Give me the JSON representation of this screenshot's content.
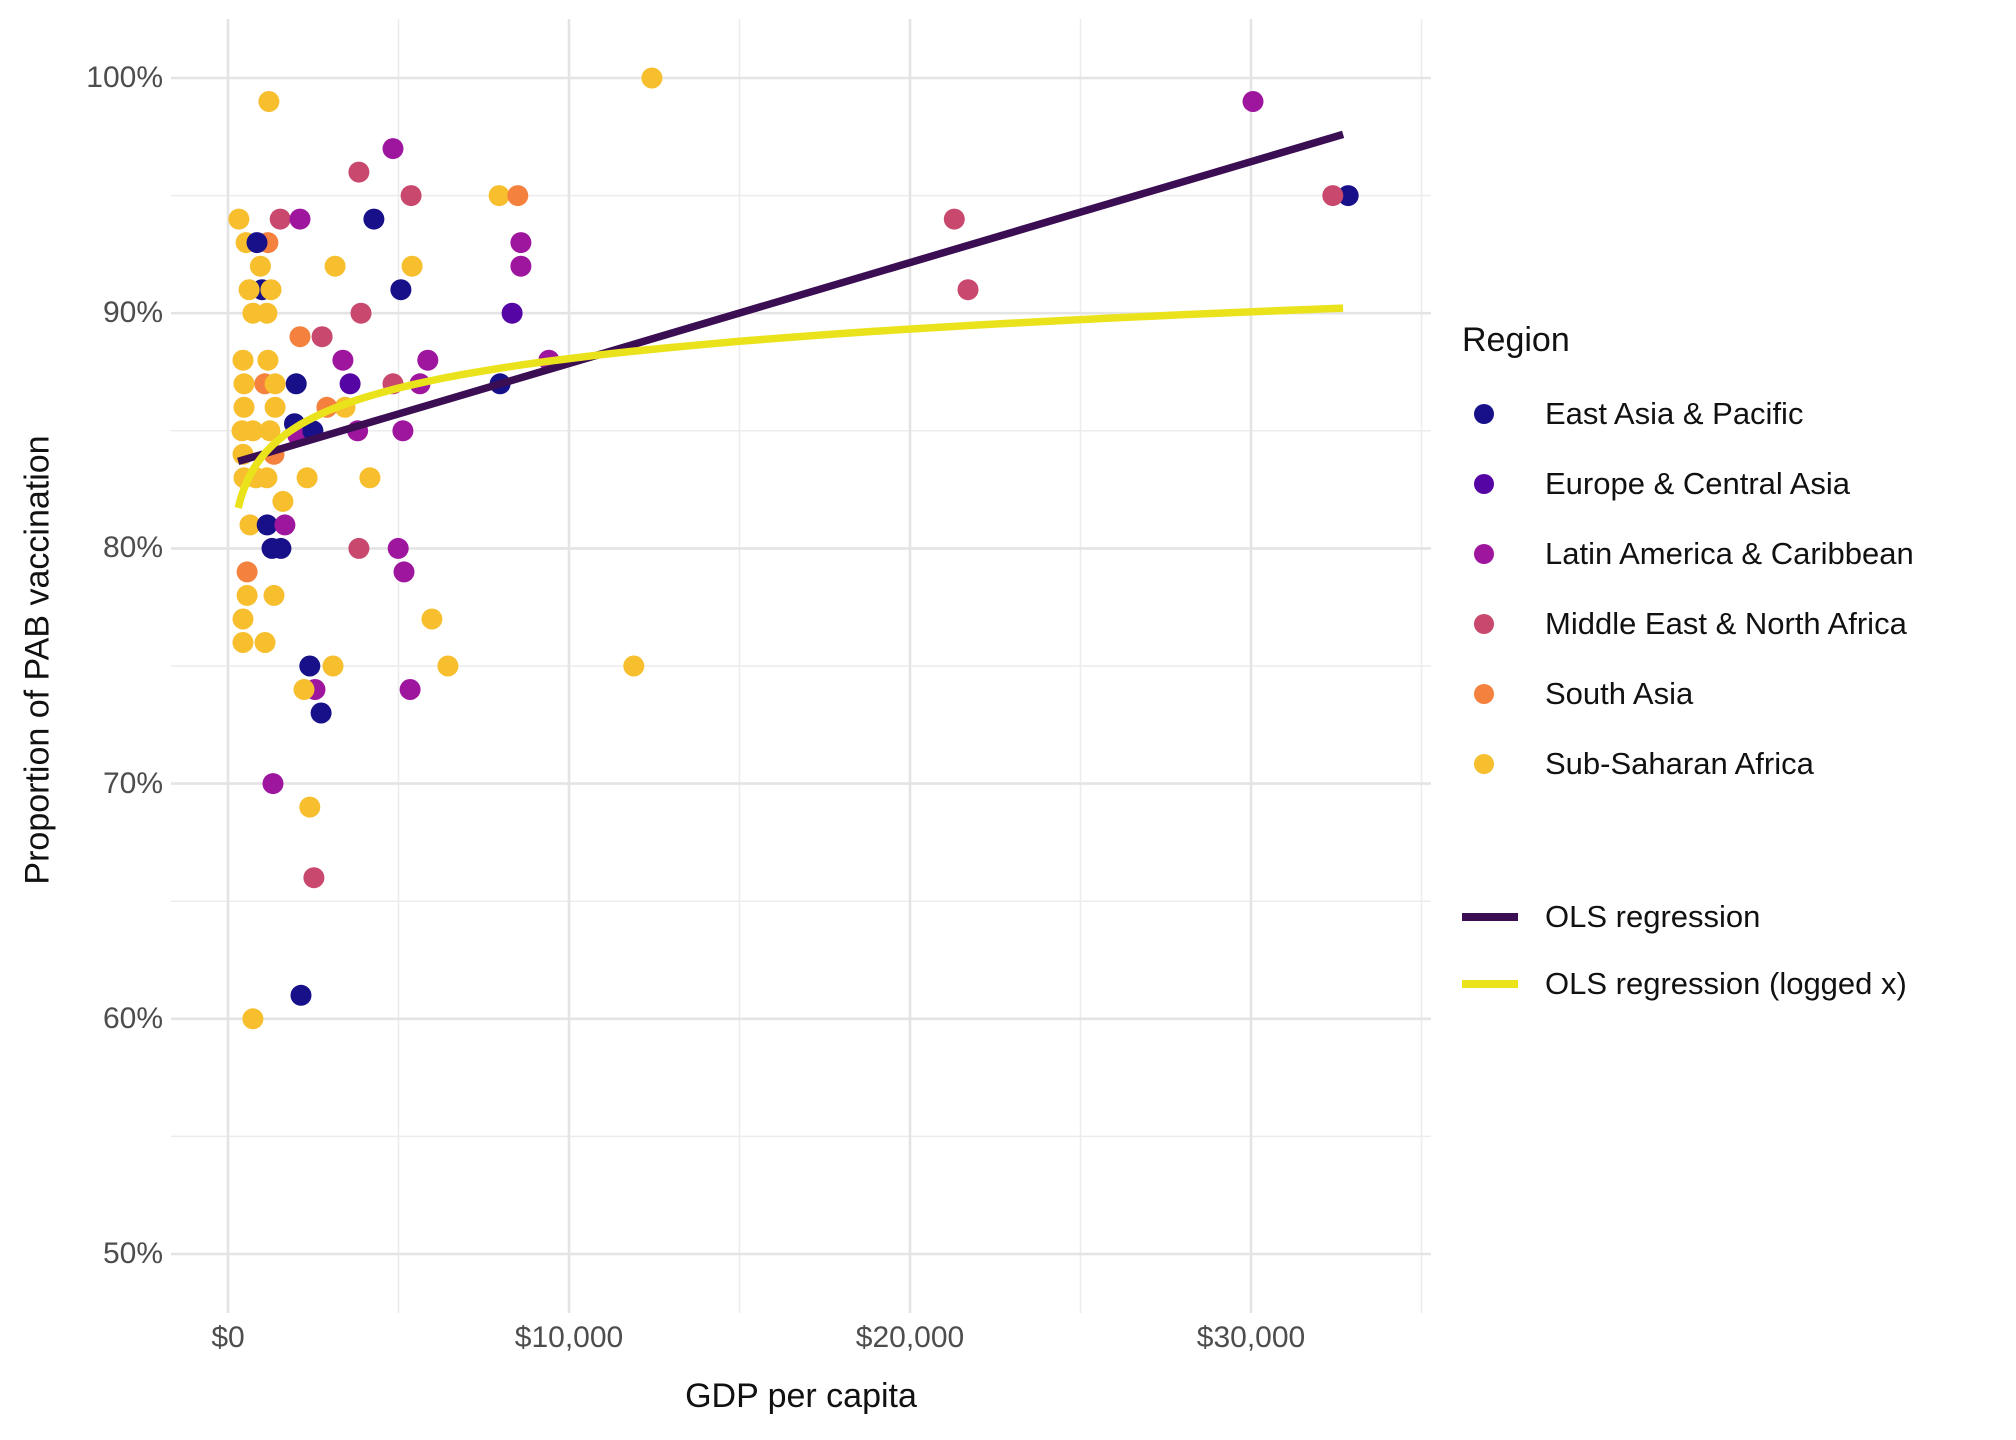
{
  "colors": {
    "eap": "#181089",
    "eca": "#5405A3",
    "lac": "#9E169E",
    "mena": "#C8486E",
    "sa": "#F5813E",
    "ssa": "#F7BE2D",
    "ols": "#3B0E53",
    "ols_logged": "#EAE31C",
    "grid_major": "#E4E4E4",
    "grid_minor": "#ECECEC",
    "tick_text": "#4D4D4D",
    "title_text": "#111111"
  },
  "axes": {
    "x": {
      "title": "GDP per capita",
      "ticks": [
        {
          "value": 0,
          "label": "$0"
        },
        {
          "value": 10000,
          "label": "$10,000"
        },
        {
          "value": 20000,
          "label": "$20,000"
        },
        {
          "value": 30000,
          "label": "$30,000"
        }
      ],
      "minor_ticks": [
        5000,
        15000,
        25000,
        35000
      ]
    },
    "y": {
      "title": "Proportion of PAB vaccination",
      "ticks": [
        {
          "value": 100,
          "label": "100%"
        },
        {
          "value": 90,
          "label": "90%"
        },
        {
          "value": 80,
          "label": "80%"
        },
        {
          "value": 70,
          "label": "70%"
        },
        {
          "value": 60,
          "label": "60%"
        },
        {
          "value": 50,
          "label": "50%"
        }
      ],
      "minor_ticks": [
        95,
        85,
        75,
        65,
        55
      ]
    }
  },
  "legend": {
    "title": "Region",
    "regions": [
      {
        "label": "East Asia & Pacific",
        "color_key": "eap"
      },
      {
        "label": "Europe & Central Asia",
        "color_key": "eca"
      },
      {
        "label": "Latin America & Caribbean",
        "color_key": "lac"
      },
      {
        "label": "Middle East & North Africa",
        "color_key": "mena"
      },
      {
        "label": "South Asia",
        "color_key": "sa"
      },
      {
        "label": "Sub-Saharan Africa",
        "color_key": "ssa"
      }
    ],
    "lines": [
      {
        "label": "OLS regression",
        "color_key": "ols"
      },
      {
        "label": "OLS regression (logged x)",
        "color_key": "ols_logged"
      }
    ]
  },
  "chart_data": {
    "type": "scatter",
    "title": "",
    "xlabel": "GDP per capita",
    "ylabel": "Proportion of PAB vaccination",
    "xlim": [
      -1700,
      35300
    ],
    "ylim": [
      47.5,
      102.5
    ],
    "grid": "on",
    "legend_position": "right",
    "point_unit": "[gdp_per_capita_usd, pab_vaccination_pct, region_key]",
    "points": [
      [
        530,
        93,
        "ssa"
      ],
      [
        1170,
        93,
        "sa"
      ],
      [
        850,
        93,
        "eap"
      ],
      [
        1000,
        91,
        "eap"
      ],
      [
        620,
        91,
        "ssa"
      ],
      [
        1260,
        91,
        "ssa"
      ],
      [
        1080,
        87,
        "sa"
      ],
      [
        470,
        87,
        "ssa"
      ],
      [
        1380,
        87,
        "ssa"
      ],
      [
        2000,
        87,
        "eap"
      ],
      [
        3580,
        87,
        "eca"
      ],
      [
        4840,
        87,
        "mena"
      ],
      [
        5630,
        87,
        "lac"
      ],
      [
        7980,
        87,
        "eap"
      ],
      [
        3430,
        86,
        "ssa"
      ],
      [
        2900,
        86,
        "sa"
      ],
      [
        470,
        86,
        "ssa"
      ],
      [
        1380,
        86,
        "ssa"
      ],
      [
        410,
        85,
        "ssa"
      ],
      [
        730,
        85,
        "ssa"
      ],
      [
        1230,
        85,
        "ssa"
      ],
      [
        1950,
        85.3,
        "eap"
      ],
      [
        2050,
        84.8,
        "lac"
      ],
      [
        2490,
        85,
        "eap"
      ],
      [
        3800,
        85,
        "lac"
      ],
      [
        5130,
        85,
        "lac"
      ],
      [
        470,
        83,
        "ssa"
      ],
      [
        1140,
        83,
        "ssa"
      ],
      [
        820,
        83,
        "ssa"
      ],
      [
        2320,
        83,
        "ssa"
      ],
      [
        4160,
        83,
        "ssa"
      ],
      [
        1290,
        80,
        "eap"
      ],
      [
        1550,
        80,
        "eap"
      ],
      [
        3840,
        80,
        "mena"
      ],
      [
        4990,
        80,
        "lac"
      ],
      [
        2550,
        74,
        "lac"
      ],
      [
        2230,
        74,
        "ssa"
      ],
      [
        5340,
        74,
        "lac"
      ],
      [
        32850,
        95,
        "eap"
      ],
      [
        32400,
        95,
        "mena"
      ],
      [
        1200,
        99,
        "ssa"
      ],
      [
        4840,
        97,
        "lac"
      ],
      [
        3840,
        96,
        "mena"
      ],
      [
        5370,
        95,
        "mena"
      ],
      [
        7950,
        95,
        "ssa"
      ],
      [
        8500,
        95,
        "sa"
      ],
      [
        320,
        94,
        "ssa"
      ],
      [
        1530,
        94,
        "mena"
      ],
      [
        2110,
        94,
        "lac"
      ],
      [
        4280,
        94,
        "eap"
      ],
      [
        21300,
        94,
        "mena"
      ],
      [
        8590,
        93,
        "lac"
      ],
      [
        950,
        92,
        "ssa"
      ],
      [
        3140,
        92,
        "ssa"
      ],
      [
        5400,
        92,
        "ssa"
      ],
      [
        8590,
        92,
        "lac"
      ],
      [
        5070,
        91,
        "eap"
      ],
      [
        21700,
        91,
        "mena"
      ],
      [
        730,
        90,
        "ssa"
      ],
      [
        1140,
        90,
        "ssa"
      ],
      [
        3900,
        90,
        "mena"
      ],
      [
        8330,
        90,
        "eca"
      ],
      [
        2110,
        89,
        "sa"
      ],
      [
        2760,
        89,
        "mena"
      ],
      [
        440,
        88,
        "ssa"
      ],
      [
        1170,
        88,
        "ssa"
      ],
      [
        3370,
        88,
        "lac"
      ],
      [
        5860,
        88,
        "lac"
      ],
      [
        9410,
        88,
        "lac"
      ],
      [
        440,
        84,
        "ssa"
      ],
      [
        1350,
        84,
        "sa"
      ],
      [
        1610,
        82,
        "ssa"
      ],
      [
        645,
        81,
        "ssa"
      ],
      [
        1150,
        81,
        "eap"
      ],
      [
        1670,
        81,
        "lac"
      ],
      [
        560,
        79,
        "sa"
      ],
      [
        5160,
        79,
        "lac"
      ],
      [
        560,
        78,
        "ssa"
      ],
      [
        1350,
        78,
        "ssa"
      ],
      [
        440,
        77,
        "ssa"
      ],
      [
        5980,
        77,
        "ssa"
      ],
      [
        440,
        76,
        "ssa"
      ],
      [
        1085,
        76,
        "ssa"
      ],
      [
        2400,
        75,
        "eap"
      ],
      [
        3080,
        75,
        "ssa"
      ],
      [
        6450,
        75,
        "ssa"
      ],
      [
        11900,
        75,
        "ssa"
      ],
      [
        2730,
        73,
        "eap"
      ],
      [
        1320,
        70,
        "lac"
      ],
      [
        2400,
        69,
        "ssa"
      ],
      [
        2520,
        66,
        "mena"
      ],
      [
        2140,
        61,
        "eap"
      ],
      [
        730,
        60,
        "ssa"
      ],
      [
        12430,
        100,
        "ssa"
      ],
      [
        30060,
        99,
        "lac"
      ]
    ],
    "lines": [
      {
        "name": "OLS regression",
        "color_key": "ols",
        "type": "linear",
        "x_range": [
          300,
          32700
        ],
        "endpoints_pct": [
          83.7,
          97.6
        ]
      },
      {
        "name": "OLS regression (logged x)",
        "color_key": "ols_logged",
        "type": "log",
        "x_range": [
          300,
          32700
        ],
        "formula": "pct = a + b*ln(gdp)",
        "a": 71.4,
        "b": 1.81
      }
    ]
  }
}
